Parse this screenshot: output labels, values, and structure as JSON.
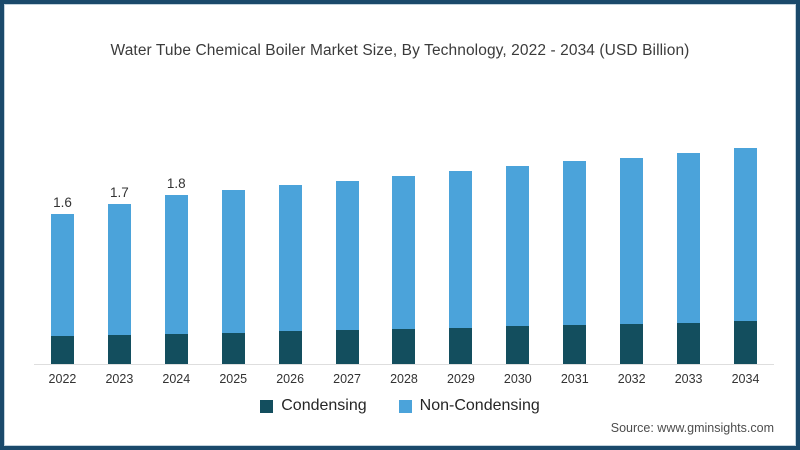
{
  "title": "Water Tube Chemical Boiler Market Size, By Technology, 2022 - 2034 (USD Billion)",
  "source": "Source: www.gminsights.com",
  "legend": [
    {
      "label": "Condensing",
      "color": "#134e5e"
    },
    {
      "label": "Non-Condensing",
      "color": "#4ba3da"
    }
  ],
  "colors": {
    "condensing": "#134e5e",
    "non_condensing": "#4ba3da",
    "frame_border": "#1b4a6b",
    "axis_line": "#dedede",
    "text": "#333333"
  },
  "chart_data": {
    "type": "bar",
    "stacked": true,
    "title": "Water Tube Chemical Boiler Market Size, By Technology, 2022 - 2034 (USD Billion)",
    "xlabel": "",
    "ylabel": "USD Billion",
    "categories": [
      "2022",
      "2023",
      "2024",
      "2025",
      "2026",
      "2027",
      "2028",
      "2029",
      "2030",
      "2031",
      "2032",
      "2033",
      "2034"
    ],
    "series": [
      {
        "name": "Condensing",
        "color": "#134e5e",
        "values": [
          0.3,
          0.31,
          0.32,
          0.33,
          0.35,
          0.36,
          0.37,
          0.38,
          0.4,
          0.41,
          0.43,
          0.44,
          0.46
        ]
      },
      {
        "name": "Non-Condensing",
        "color": "#4ba3da",
        "values": [
          1.3,
          1.39,
          1.48,
          1.52,
          1.55,
          1.59,
          1.63,
          1.67,
          1.7,
          1.74,
          1.77,
          1.81,
          1.84
        ]
      }
    ],
    "totals": [
      1.6,
      1.7,
      1.8,
      1.85,
      1.9,
      1.95,
      2.0,
      2.05,
      2.1,
      2.15,
      2.2,
      2.25,
      2.3
    ],
    "data_labels": [
      "1.6",
      "1.7",
      "1.8",
      "",
      "",
      "",
      "",
      "",
      "",
      "",
      "",
      "",
      ""
    ],
    "ylim": [
      0,
      2.5
    ],
    "grid": false,
    "legend_position": "bottom"
  }
}
